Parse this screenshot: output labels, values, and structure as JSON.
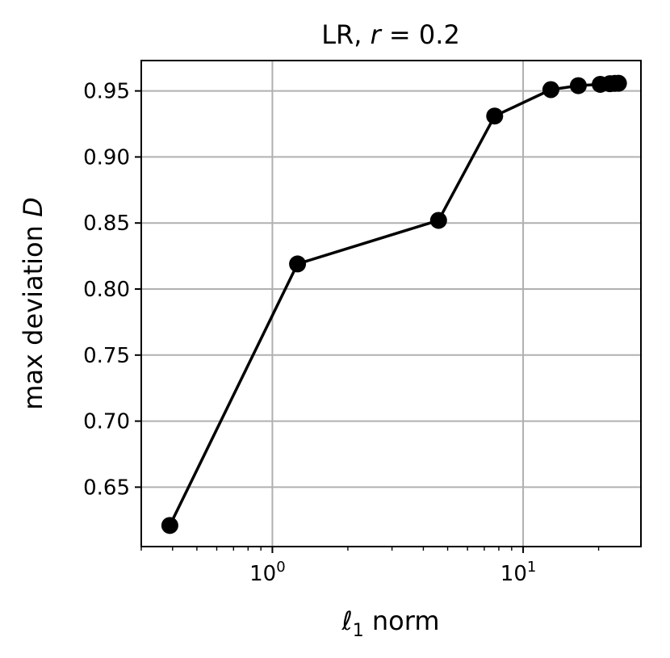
{
  "chart_data": {
    "type": "line",
    "title": "LR, r = 0.2",
    "title_parts": {
      "prefix": "LR, ",
      "var": "r",
      "suffix": " = 0.2"
    },
    "xlabel": "ℓ1 norm",
    "xlabel_parts": {
      "symbol": "ℓ",
      "sub": "1",
      "rest": " norm"
    },
    "ylabel": "max deviation D",
    "ylabel_parts": {
      "text": "max deviation ",
      "var": "D"
    },
    "xscale": "log",
    "xlim": [
      0.3,
      29.5
    ],
    "ylim": [
      0.605,
      0.973
    ],
    "grid": true,
    "x_ticks": [
      {
        "value": 1,
        "base": "10",
        "exp": "0"
      },
      {
        "value": 10,
        "base": "10",
        "exp": "1"
      }
    ],
    "y_ticks": [
      {
        "value": 0.65,
        "label": "0.65"
      },
      {
        "value": 0.7,
        "label": "0.70"
      },
      {
        "value": 0.75,
        "label": "0.75"
      },
      {
        "value": 0.8,
        "label": "0.80"
      },
      {
        "value": 0.85,
        "label": "0.85"
      },
      {
        "value": 0.9,
        "label": "0.90"
      },
      {
        "value": 0.95,
        "label": "0.95"
      }
    ],
    "series": [
      {
        "color": "#000000",
        "marker": "circle",
        "points": [
          {
            "x": 0.39,
            "y": 0.621
          },
          {
            "x": 1.26,
            "y": 0.819
          },
          {
            "x": 4.6,
            "y": 0.852
          },
          {
            "x": 7.7,
            "y": 0.931
          },
          {
            "x": 12.9,
            "y": 0.951
          },
          {
            "x": 16.6,
            "y": 0.954
          },
          {
            "x": 20.3,
            "y": 0.955
          },
          {
            "x": 22.2,
            "y": 0.9555
          },
          {
            "x": 23.2,
            "y": 0.9557
          },
          {
            "x": 24.0,
            "y": 0.9558
          }
        ]
      }
    ]
  }
}
